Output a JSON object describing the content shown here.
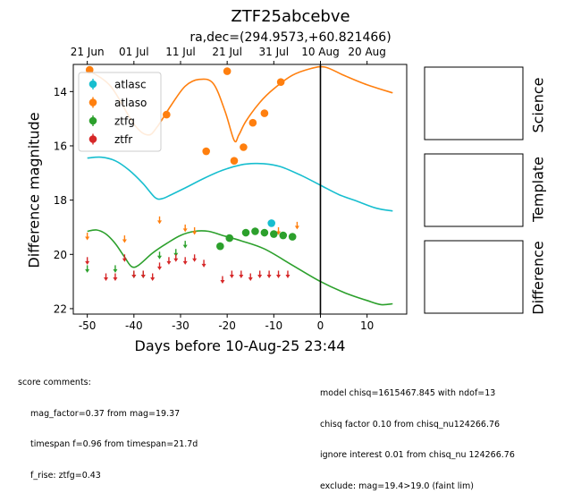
{
  "title": "ZTF25abcebve",
  "subtitle": "ra,dec=(294.9573,+60.821466)",
  "xlabel": "Days before 10-Aug-25 23:44",
  "ylabel": "Difference magnitude",
  "side_panels": [
    "Science",
    "Template",
    "Difference"
  ],
  "score_comments": {
    "header": "score comments:",
    "lines": [
      "mag_factor=0.37 from mag=19.37",
      "timespan f=0.96 from timespan=21.7d",
      "f_rise: ztfg=0.43"
    ]
  },
  "model_comments": [
    "model chisq=1615467.845 with ndof=13",
    "chisq factor 0.10 from chisq_nu124266.76",
    "ignore interest 0.01 from chisq_nu 124266.76",
    "exclude: mag=19.4>19.0 (faint lim)"
  ],
  "colors": {
    "atlasc": "#17becf",
    "atlaso": "#ff7f0e",
    "ztfg": "#2ca02c",
    "ztfr": "#d62728"
  },
  "chart_data": {
    "type": "scatter",
    "title": "ZTF25abcebve",
    "subtitle": "ra,dec=(294.9573,+60.821466)",
    "xlabel": "Days before 10-Aug-25 23:44",
    "ylabel": "Difference magnitude",
    "xlim": [
      -53,
      18.5
    ],
    "ylim": [
      22.2,
      13.0
    ],
    "y_inverted": true,
    "x_ticks": [
      -50,
      -40,
      -30,
      -20,
      -10,
      0,
      10
    ],
    "y_ticks": [
      14,
      16,
      18,
      20,
      22
    ],
    "top_axis_ticks": [
      {
        "label": "21 Jun",
        "x": -50
      },
      {
        "label": "01 Jul",
        "x": -40
      },
      {
        "label": "11 Jul",
        "x": -30
      },
      {
        "label": "21 Jul",
        "x": -20
      },
      {
        "label": "31 Jul",
        "x": -10
      },
      {
        "label": "10 Aug",
        "x": 0
      },
      {
        "label": "20 Aug",
        "x": 10
      }
    ],
    "vertical_line_x": 0,
    "legend": {
      "position": "top-left",
      "entries": [
        "atlasc",
        "atlaso",
        "ztfg",
        "ztfr"
      ]
    },
    "series": [
      {
        "name": "atlasc",
        "color": "#17becf",
        "points": [
          [
            -10.5,
            18.85
          ]
        ],
        "upper_limits": [],
        "curve": [
          [
            -50,
            16.45
          ],
          [
            -47,
            16.42
          ],
          [
            -44,
            16.55
          ],
          [
            -41,
            16.9
          ],
          [
            -38,
            17.4
          ],
          [
            -35.5,
            17.9
          ],
          [
            -34,
            17.95
          ],
          [
            -32,
            17.8
          ],
          [
            -29,
            17.55
          ],
          [
            -25,
            17.2
          ],
          [
            -21,
            16.9
          ],
          [
            -17,
            16.7
          ],
          [
            -14,
            16.65
          ],
          [
            -11,
            16.68
          ],
          [
            -8,
            16.8
          ],
          [
            -4,
            17.1
          ],
          [
            0,
            17.45
          ],
          [
            4,
            17.8
          ],
          [
            8,
            18.05
          ],
          [
            12,
            18.3
          ],
          [
            15.5,
            18.4
          ]
        ]
      },
      {
        "name": "atlaso",
        "color": "#ff7f0e",
        "points": [
          [
            -49.5,
            13.2
          ],
          [
            -33,
            14.85
          ],
          [
            -24.5,
            16.2
          ],
          [
            -20,
            13.25
          ],
          [
            -18.5,
            16.55
          ],
          [
            -16.5,
            16.05
          ],
          [
            -14.5,
            15.15
          ],
          [
            -12,
            14.8
          ],
          [
            -8.5,
            13.65
          ]
        ],
        "upper_limits": [
          [
            -50,
            19.2
          ],
          [
            -42,
            19.3
          ],
          [
            -34.5,
            18.6
          ],
          [
            -29,
            18.9
          ],
          [
            -27,
            19.0
          ],
          [
            -9,
            19.0
          ],
          [
            -5,
            18.8
          ]
        ],
        "curve": [
          [
            -50,
            13.2
          ],
          [
            -45,
            13.8
          ],
          [
            -40,
            15.2
          ],
          [
            -37,
            15.6
          ],
          [
            -35,
            15.3
          ],
          [
            -32,
            14.5
          ],
          [
            -29,
            13.8
          ],
          [
            -26,
            13.55
          ],
          [
            -23,
            13.7
          ],
          [
            -20.5,
            14.7
          ],
          [
            -18.5,
            15.8
          ],
          [
            -17.5,
            15.6
          ],
          [
            -16,
            15.1
          ],
          [
            -13,
            14.4
          ],
          [
            -10,
            13.9
          ],
          [
            -6,
            13.4
          ],
          [
            -2,
            13.15
          ],
          [
            1,
            13.1
          ],
          [
            5,
            13.4
          ],
          [
            10,
            13.75
          ],
          [
            15.5,
            14.05
          ]
        ]
      },
      {
        "name": "ztfg",
        "color": "#2ca02c",
        "points": [
          [
            -21.5,
            19.7
          ],
          [
            -19.5,
            19.4
          ],
          [
            -16,
            19.2
          ],
          [
            -14,
            19.15
          ],
          [
            -12,
            19.2
          ],
          [
            -10,
            19.25
          ],
          [
            -8,
            19.3
          ],
          [
            -6,
            19.35
          ]
        ],
        "upper_limits": [
          [
            -50,
            20.4
          ],
          [
            -44,
            20.4
          ],
          [
            -40,
            20.6
          ],
          [
            -38,
            20.6
          ],
          [
            -34.5,
            19.9
          ],
          [
            -31,
            19.8
          ],
          [
            -29,
            19.5
          ]
        ],
        "curve": [
          [
            -50,
            19.15
          ],
          [
            -48,
            19.1
          ],
          [
            -46,
            19.25
          ],
          [
            -44,
            19.6
          ],
          [
            -42,
            20.1
          ],
          [
            -40.5,
            20.45
          ],
          [
            -39,
            20.4
          ],
          [
            -36,
            19.95
          ],
          [
            -33,
            19.6
          ],
          [
            -30,
            19.3
          ],
          [
            -27,
            19.15
          ],
          [
            -24,
            19.15
          ],
          [
            -21,
            19.3
          ],
          [
            -17,
            19.5
          ],
          [
            -12,
            19.8
          ],
          [
            -6,
            20.4
          ],
          [
            0,
            21.0
          ],
          [
            5,
            21.4
          ],
          [
            10,
            21.7
          ],
          [
            13,
            21.85
          ],
          [
            15.5,
            21.82
          ]
        ]
      },
      {
        "name": "ztfr",
        "color": "#d62728",
        "points": [],
        "upper_limits": [
          [
            -50,
            20.1
          ],
          [
            -46,
            20.7
          ],
          [
            -44,
            20.7
          ],
          [
            -42,
            20.0
          ],
          [
            -40,
            20.6
          ],
          [
            -38,
            20.6
          ],
          [
            -36,
            20.7
          ],
          [
            -34.5,
            20.3
          ],
          [
            -32.5,
            20.1
          ],
          [
            -31,
            20.0
          ],
          [
            -29,
            20.1
          ],
          [
            -27,
            20.0
          ],
          [
            -25,
            20.2
          ],
          [
            -21,
            20.8
          ],
          [
            -19,
            20.6
          ],
          [
            -17,
            20.6
          ],
          [
            -15,
            20.7
          ],
          [
            -13,
            20.6
          ],
          [
            -11,
            20.6
          ],
          [
            -9,
            20.6
          ],
          [
            -7,
            20.6
          ]
        ],
        "curve": []
      }
    ]
  }
}
